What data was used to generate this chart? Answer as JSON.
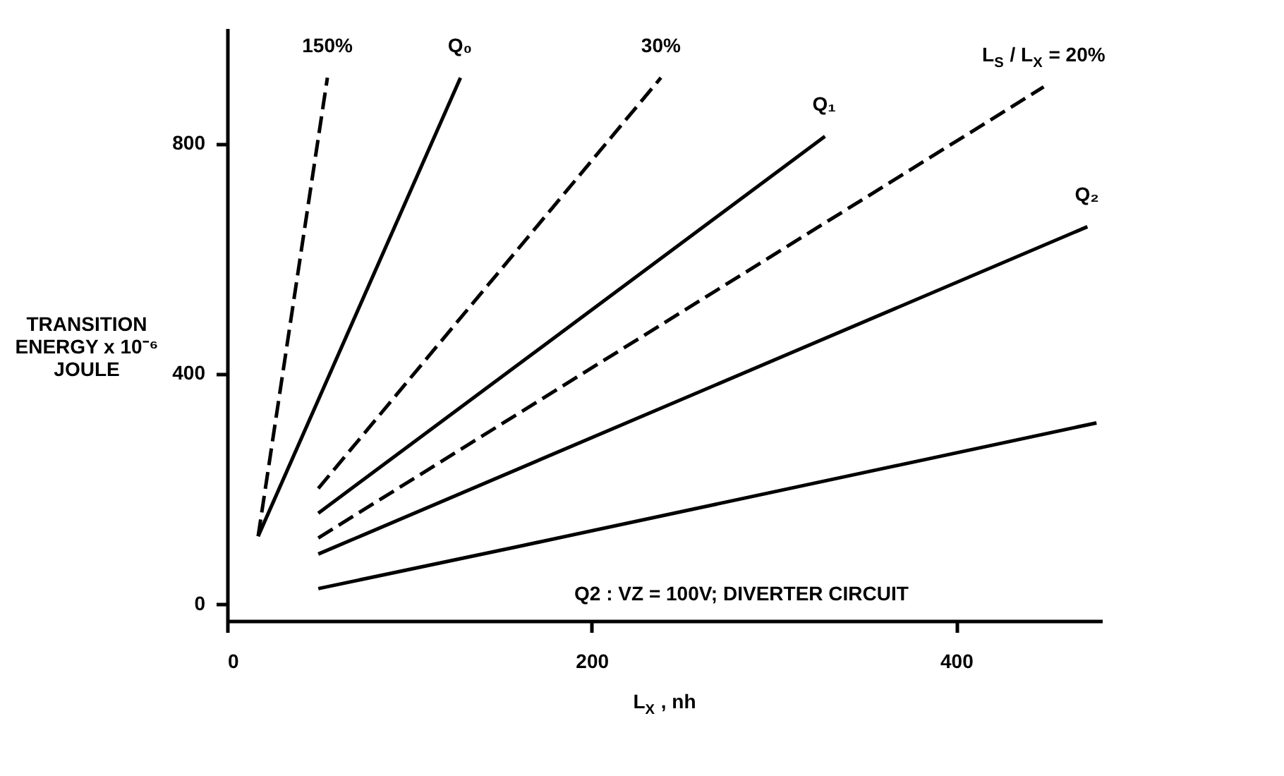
{
  "chart_data": {
    "type": "line",
    "xlabel": "L$_{X}$ , nh",
    "ylabel": "TRANSITION ENERGY x 10⁻⁶ JOULE",
    "xlim": [
      0,
      480
    ],
    "ylim": [
      -30,
      1000
    ],
    "xticks": [
      0,
      200,
      400
    ],
    "yticks": [
      0,
      400,
      800
    ],
    "grid": false,
    "marker": "none",
    "series": [
      {
        "name": "150%",
        "color": "#000000",
        "line_style": "dashed",
        "x": [
          17,
          55
        ],
        "values": [
          117,
          914
        ]
      },
      {
        "name": "Q₀",
        "color": "#000000",
        "line_style": "solid",
        "x": [
          17,
          128
        ],
        "values": [
          117,
          914
        ]
      },
      {
        "name": "30%",
        "color": "#000000",
        "line_style": "dashed",
        "x": [
          50,
          238
        ],
        "values": [
          200,
          914
        ]
      },
      {
        "name": "Q₁",
        "color": "#000000",
        "line_style": "solid",
        "x": [
          50,
          328
        ],
        "values": [
          157,
          812
        ]
      },
      {
        "name": "L$_{S}$ / L$_{X}$ = 20%",
        "color": "#000000",
        "line_style": "dashed",
        "x": [
          50,
          448
        ],
        "values": [
          114,
          898
        ]
      },
      {
        "name": "Q₂",
        "color": "#000000",
        "line_style": "solid",
        "x": [
          50,
          472
        ],
        "values": [
          86,
          655
        ]
      },
      {
        "color": "#000000",
        "line_style": "solid",
        "x": [
          50,
          161,
          477
        ],
        "values": [
          26,
          100,
          314
        ]
      }
    ],
    "annotations": [
      {
        "text": "Q2 : VZ = 100V; DIVERTER CIRCUIT",
        "x": 175,
        "y": 108
      }
    ]
  }
}
